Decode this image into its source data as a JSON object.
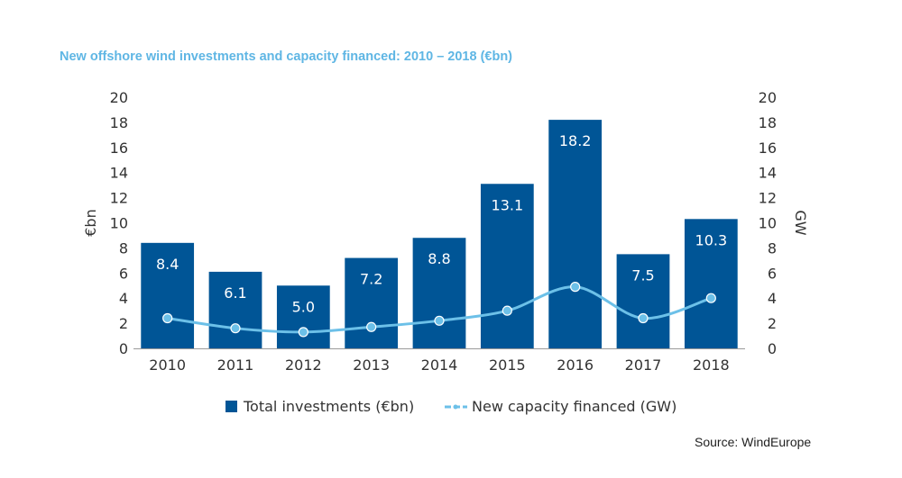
{
  "chart_data": {
    "type": "bar",
    "title": "New offshore wind investments and capacity financed: 2010 – 2018 (€bn)",
    "categories": [
      "2010",
      "2011",
      "2012",
      "2013",
      "2014",
      "2015",
      "2016",
      "2017",
      "2018"
    ],
    "series": [
      {
        "name": "Total investments (€bn)",
        "type": "bar",
        "axis": "left",
        "color": "#005596",
        "values": [
          8.4,
          6.1,
          5.0,
          7.2,
          8.8,
          13.1,
          18.2,
          7.5,
          10.3
        ],
        "data_labels": [
          "8.4",
          "6.1",
          "5.0",
          "7.2",
          "8.8",
          "13.1",
          "18.2",
          "7.5",
          "10.3"
        ]
      },
      {
        "name": "New capacity financed (GW)",
        "type": "line",
        "axis": "right",
        "color": "#6cc0e8",
        "values": [
          2.4,
          1.6,
          1.3,
          1.7,
          2.2,
          3.0,
          4.9,
          2.4,
          4.0
        ]
      }
    ],
    "ylabel": "€bn",
    "y2label": "GW",
    "ylim": [
      0,
      20
    ],
    "y2lim": [
      0,
      20
    ],
    "yticks": [
      "0",
      "2",
      "4",
      "6",
      "8",
      "10",
      "12",
      "14",
      "16",
      "18",
      "20"
    ],
    "y2ticks": [
      "0",
      "2",
      "4",
      "6",
      "8",
      "10",
      "12",
      "14",
      "16",
      "18",
      "20"
    ],
    "grid": false,
    "legend_position": "bottom"
  },
  "source": "Source: WindEurope"
}
